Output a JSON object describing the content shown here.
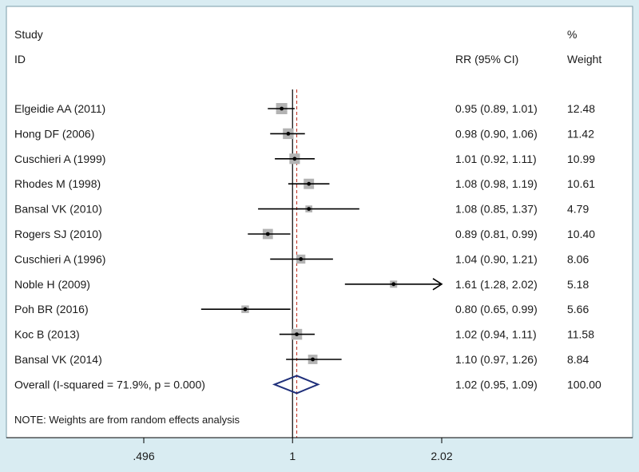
{
  "header": {
    "study_line1": "Study",
    "study_line2": "ID",
    "rr_label": "RR (95% CI)",
    "weight_line1": "%",
    "weight_line2": "Weight"
  },
  "note": "NOTE: Weights are from random effects analysis",
  "chart_data": {
    "type": "forest",
    "measure": "RR",
    "xaxis": {
      "ticks": [
        0.496,
        1,
        2.02
      ],
      "tick_labels": [
        ".496",
        "1",
        "2.02"
      ],
      "scale": "log"
    },
    "null_line": 1,
    "overall_line": 1.02,
    "studies": [
      {
        "id": "Elgeidie AA (2011)",
        "rr": 0.95,
        "lo": 0.89,
        "hi": 1.01,
        "ci_text": "0.95 (0.89, 1.01)",
        "weight": "12.48"
      },
      {
        "id": "Hong DF (2006)",
        "rr": 0.98,
        "lo": 0.9,
        "hi": 1.06,
        "ci_text": "0.98 (0.90, 1.06)",
        "weight": "11.42"
      },
      {
        "id": "Cuschieri A (1999)",
        "rr": 1.01,
        "lo": 0.92,
        "hi": 1.11,
        "ci_text": "1.01 (0.92, 1.11)",
        "weight": "10.99"
      },
      {
        "id": "Rhodes M (1998)",
        "rr": 1.08,
        "lo": 0.98,
        "hi": 1.19,
        "ci_text": "1.08 (0.98, 1.19)",
        "weight": "10.61"
      },
      {
        "id": "Bansal VK (2010)",
        "rr": 1.08,
        "lo": 0.85,
        "hi": 1.37,
        "ci_text": "1.08 (0.85, 1.37)",
        "weight": "4.79"
      },
      {
        "id": "Rogers SJ (2010)",
        "rr": 0.89,
        "lo": 0.81,
        "hi": 0.99,
        "ci_text": "0.89 (0.81, 0.99)",
        "weight": "10.40"
      },
      {
        "id": "Cuschieri A (1996)",
        "rr": 1.04,
        "lo": 0.9,
        "hi": 1.21,
        "ci_text": "1.04 (0.90, 1.21)",
        "weight": "8.06"
      },
      {
        "id": "Noble H (2009)",
        "rr": 1.61,
        "lo": 1.28,
        "hi": 2.02,
        "ci_text": "1.61 (1.28, 2.02)",
        "weight": "5.18",
        "arrow": true
      },
      {
        "id": "Poh BR (2016)",
        "rr": 0.8,
        "lo": 0.65,
        "hi": 0.99,
        "ci_text": "0.80 (0.65, 0.99)",
        "weight": "5.66"
      },
      {
        "id": "Koc B (2013)",
        "rr": 1.02,
        "lo": 0.94,
        "hi": 1.11,
        "ci_text": "1.02 (0.94, 1.11)",
        "weight": "11.58"
      },
      {
        "id": "Bansal VK (2014)",
        "rr": 1.1,
        "lo": 0.97,
        "hi": 1.26,
        "ci_text": "1.10 (0.97, 1.26)",
        "weight": "8.84"
      }
    ],
    "overall": {
      "id": "Overall  (I-squared = 71.9%, p = 0.000)",
      "rr": 1.02,
      "lo": 0.95,
      "hi": 1.09,
      "ci_text": "1.02 (0.95, 1.09)",
      "weight": "100.00"
    },
    "colors": {
      "line": "#000000",
      "square": "#b3b3b3",
      "diamond": "#1f2f7a",
      "overall_line": "#c0392b"
    }
  }
}
